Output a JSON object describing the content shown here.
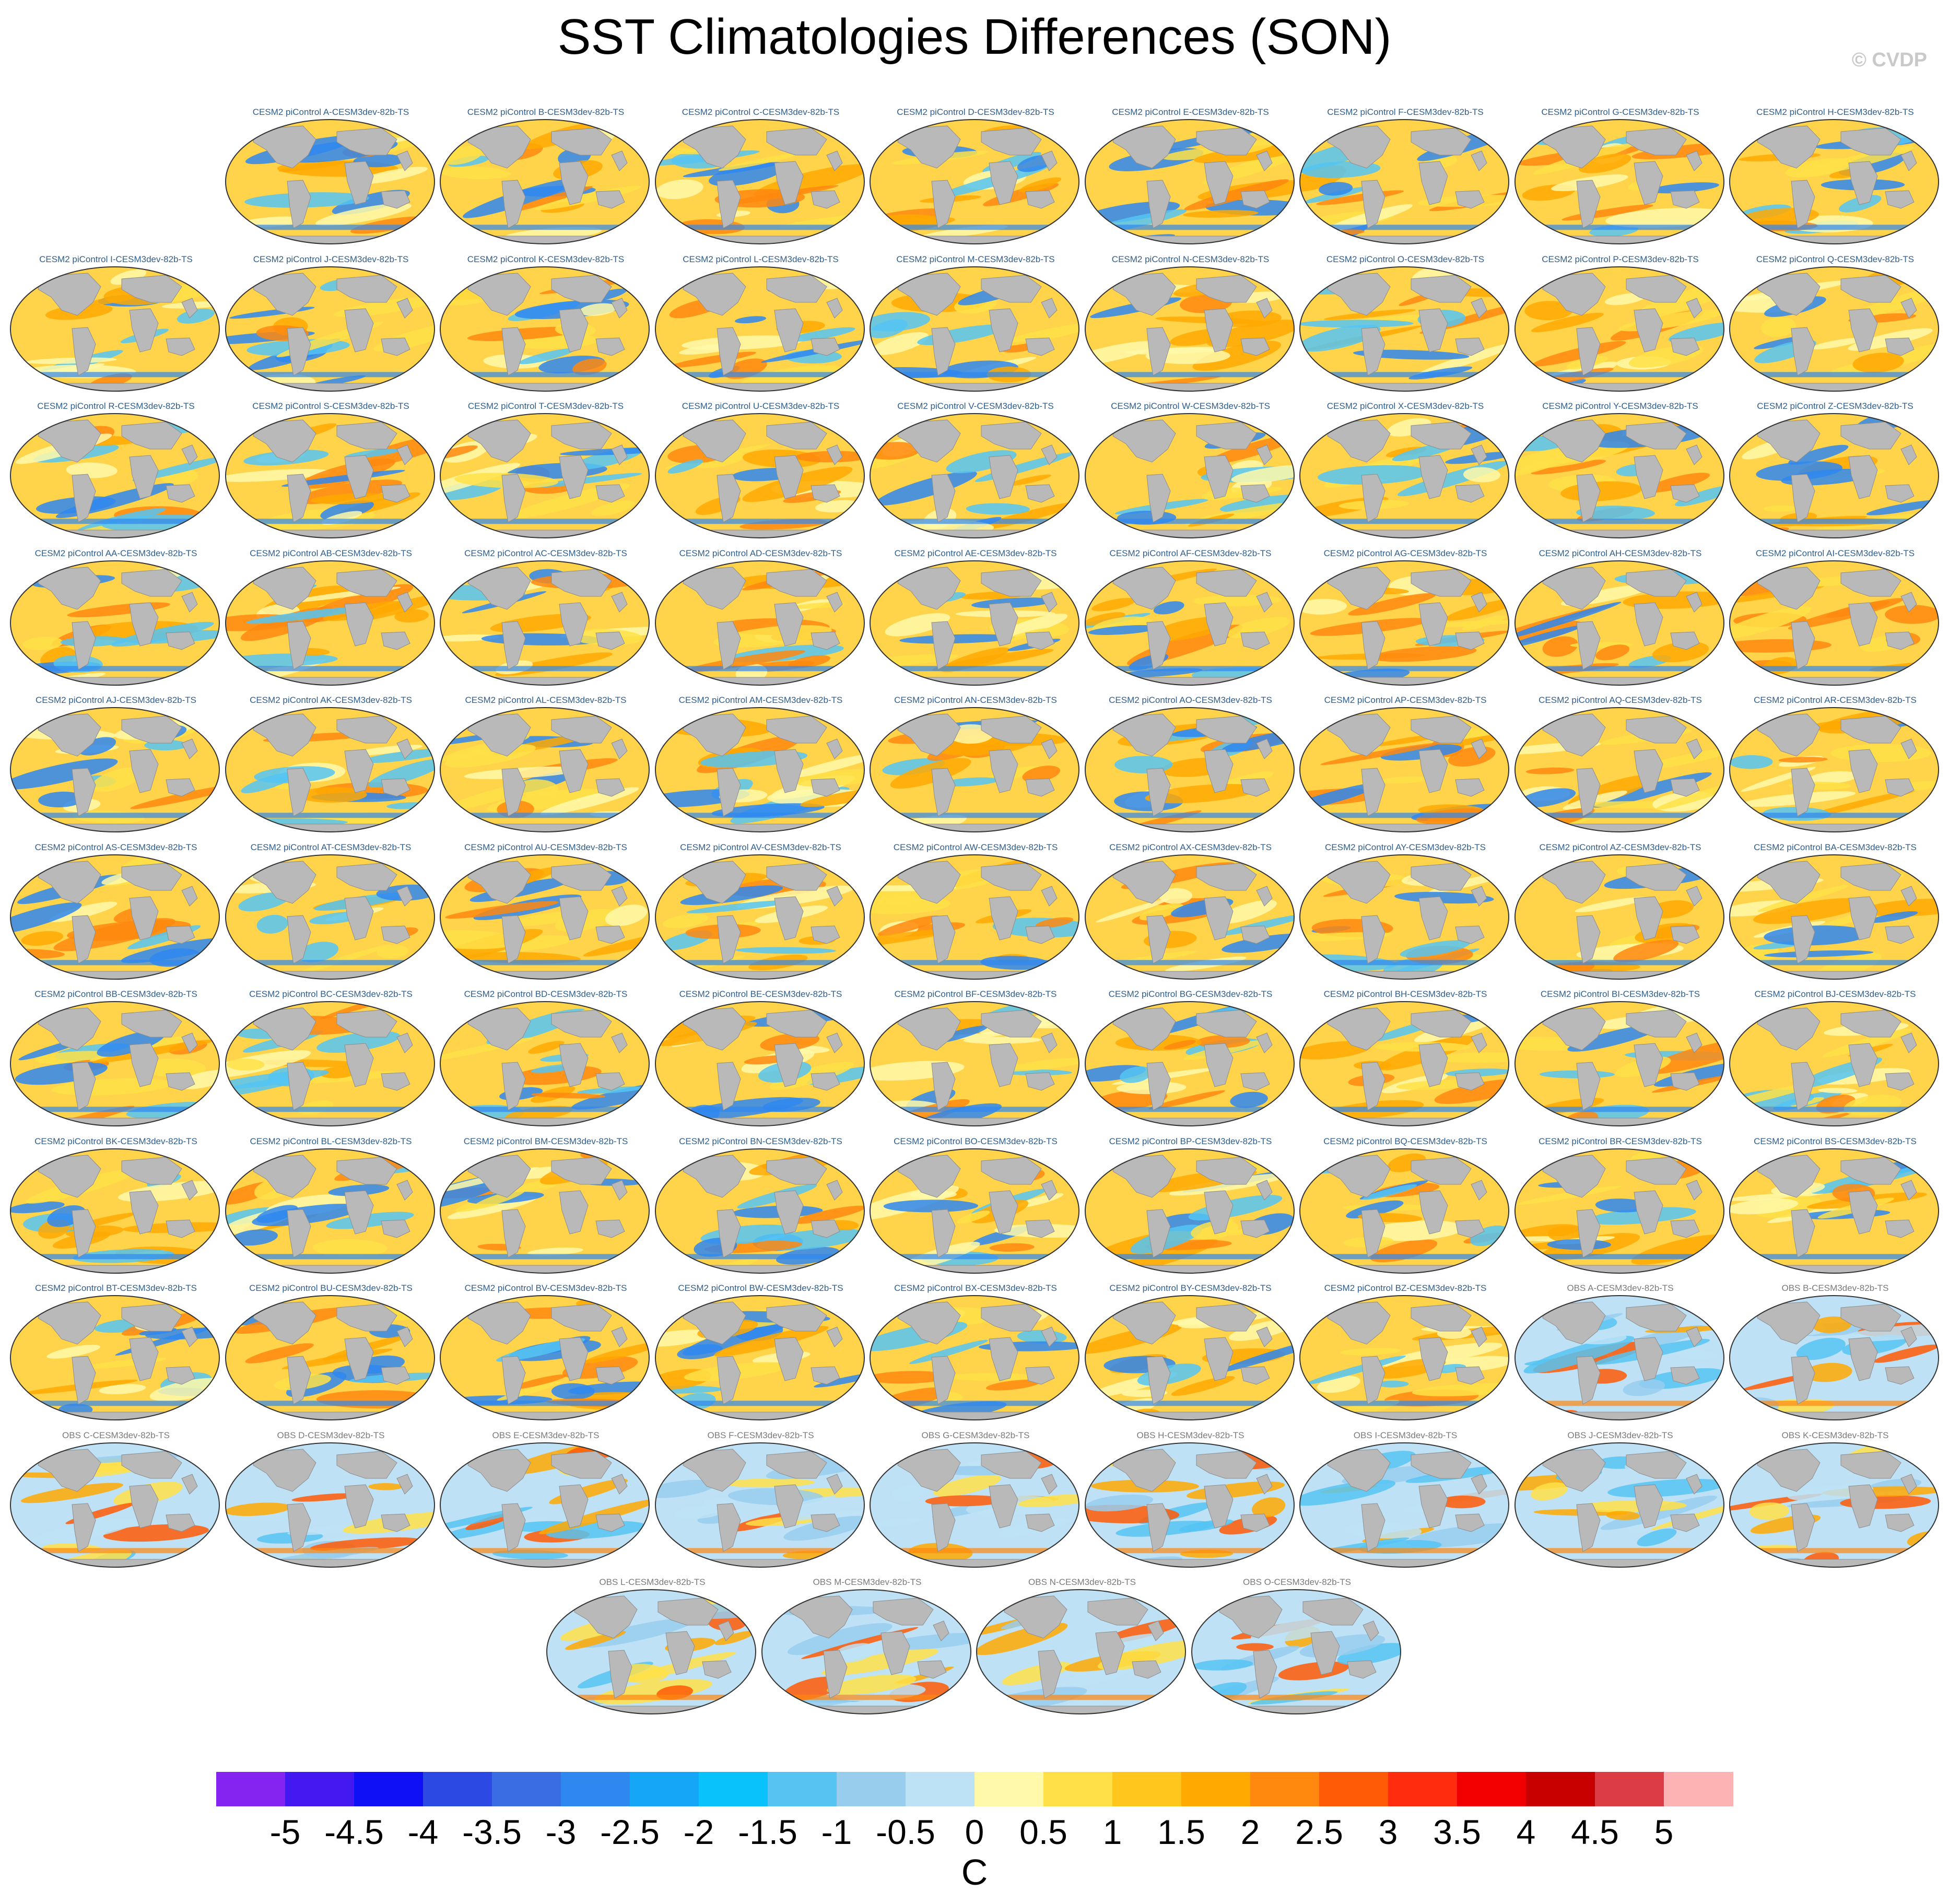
{
  "title": "SST Climatologies Differences (SON)",
  "copyright": "© CVDP",
  "units": "C",
  "colorbar": {
    "labels": [
      "-5",
      "-4.5",
      "-4",
      "-3.5",
      "-3",
      "-2.5",
      "-2",
      "-1.5",
      "-1",
      "-0.5",
      "0",
      "0.5",
      "1",
      "1.5",
      "2",
      "2.5",
      "3",
      "3.5",
      "4",
      "4.5",
      "5"
    ],
    "colors": [
      "#8424f0",
      "#4418f0",
      "#1010f6",
      "#2d49e3",
      "#3a6de3",
      "#2f87f0",
      "#16a6f8",
      "#0ac2fb",
      "#55c4f3",
      "#98cdee",
      "#bde2f6",
      "#fff9a9",
      "#ffe048",
      "#ffc61e",
      "#ffa901",
      "#ff880f",
      "#ff5a06",
      "#ff2c0e",
      "#f20000",
      "#c80000",
      "#dc3c44",
      "#fdb3b3"
    ]
  },
  "panels": [
    {
      "label": "CESM2 piControl A-CESM3dev-82b-TS",
      "kind": "model"
    },
    {
      "label": "CESM2 piControl B-CESM3dev-82b-TS",
      "kind": "model"
    },
    {
      "label": "CESM2 piControl C-CESM3dev-82b-TS",
      "kind": "model"
    },
    {
      "label": "CESM2 piControl D-CESM3dev-82b-TS",
      "kind": "model"
    },
    {
      "label": "CESM2 piControl E-CESM3dev-82b-TS",
      "kind": "model"
    },
    {
      "label": "CESM2 piControl F-CESM3dev-82b-TS",
      "kind": "model"
    },
    {
      "label": "CESM2 piControl G-CESM3dev-82b-TS",
      "kind": "model"
    },
    {
      "label": "CESM2 piControl H-CESM3dev-82b-TS",
      "kind": "model"
    },
    {
      "label": "CESM2 piControl I-CESM3dev-82b-TS",
      "kind": "model"
    },
    {
      "label": "CESM2 piControl J-CESM3dev-82b-TS",
      "kind": "model"
    },
    {
      "label": "CESM2 piControl K-CESM3dev-82b-TS",
      "kind": "model"
    },
    {
      "label": "CESM2 piControl L-CESM3dev-82b-TS",
      "kind": "model"
    },
    {
      "label": "CESM2 piControl M-CESM3dev-82b-TS",
      "kind": "model"
    },
    {
      "label": "CESM2 piControl N-CESM3dev-82b-TS",
      "kind": "model"
    },
    {
      "label": "CESM2 piControl O-CESM3dev-82b-TS",
      "kind": "model"
    },
    {
      "label": "CESM2 piControl P-CESM3dev-82b-TS",
      "kind": "model"
    },
    {
      "label": "CESM2 piControl Q-CESM3dev-82b-TS",
      "kind": "model"
    },
    {
      "label": "CESM2 piControl R-CESM3dev-82b-TS",
      "kind": "model"
    },
    {
      "label": "CESM2 piControl S-CESM3dev-82b-TS",
      "kind": "model"
    },
    {
      "label": "CESM2 piControl T-CESM3dev-82b-TS",
      "kind": "model"
    },
    {
      "label": "CESM2 piControl U-CESM3dev-82b-TS",
      "kind": "model"
    },
    {
      "label": "CESM2 piControl V-CESM3dev-82b-TS",
      "kind": "model"
    },
    {
      "label": "CESM2 piControl W-CESM3dev-82b-TS",
      "kind": "model"
    },
    {
      "label": "CESM2 piControl X-CESM3dev-82b-TS",
      "kind": "model"
    },
    {
      "label": "CESM2 piControl Y-CESM3dev-82b-TS",
      "kind": "model"
    },
    {
      "label": "CESM2 piControl Z-CESM3dev-82b-TS",
      "kind": "model"
    },
    {
      "label": "CESM2 piControl AA-CESM3dev-82b-TS",
      "kind": "model"
    },
    {
      "label": "CESM2 piControl AB-CESM3dev-82b-TS",
      "kind": "model"
    },
    {
      "label": "CESM2 piControl AC-CESM3dev-82b-TS",
      "kind": "model"
    },
    {
      "label": "CESM2 piControl AD-CESM3dev-82b-TS",
      "kind": "model"
    },
    {
      "label": "CESM2 piControl AE-CESM3dev-82b-TS",
      "kind": "model"
    },
    {
      "label": "CESM2 piControl AF-CESM3dev-82b-TS",
      "kind": "model"
    },
    {
      "label": "CESM2 piControl AG-CESM3dev-82b-TS",
      "kind": "model"
    },
    {
      "label": "CESM2 piControl AH-CESM3dev-82b-TS",
      "kind": "model"
    },
    {
      "label": "CESM2 piControl AI-CESM3dev-82b-TS",
      "kind": "model"
    },
    {
      "label": "CESM2 piControl AJ-CESM3dev-82b-TS",
      "kind": "model"
    },
    {
      "label": "CESM2 piControl AK-CESM3dev-82b-TS",
      "kind": "model"
    },
    {
      "label": "CESM2 piControl AL-CESM3dev-82b-TS",
      "kind": "model"
    },
    {
      "label": "CESM2 piControl AM-CESM3dev-82b-TS",
      "kind": "model"
    },
    {
      "label": "CESM2 piControl AN-CESM3dev-82b-TS",
      "kind": "model"
    },
    {
      "label": "CESM2 piControl AO-CESM3dev-82b-TS",
      "kind": "model"
    },
    {
      "label": "CESM2 piControl AP-CESM3dev-82b-TS",
      "kind": "model"
    },
    {
      "label": "CESM2 piControl AQ-CESM3dev-82b-TS",
      "kind": "model"
    },
    {
      "label": "CESM2 piControl AR-CESM3dev-82b-TS",
      "kind": "model"
    },
    {
      "label": "CESM2 piControl AS-CESM3dev-82b-TS",
      "kind": "model"
    },
    {
      "label": "CESM2 piControl AT-CESM3dev-82b-TS",
      "kind": "model"
    },
    {
      "label": "CESM2 piControl AU-CESM3dev-82b-TS",
      "kind": "model"
    },
    {
      "label": "CESM2 piControl AV-CESM3dev-82b-TS",
      "kind": "model"
    },
    {
      "label": "CESM2 piControl AW-CESM3dev-82b-TS",
      "kind": "model"
    },
    {
      "label": "CESM2 piControl AX-CESM3dev-82b-TS",
      "kind": "model"
    },
    {
      "label": "CESM2 piControl AY-CESM3dev-82b-TS",
      "kind": "model"
    },
    {
      "label": "CESM2 piControl AZ-CESM3dev-82b-TS",
      "kind": "model"
    },
    {
      "label": "CESM2 piControl BA-CESM3dev-82b-TS",
      "kind": "model"
    },
    {
      "label": "CESM2 piControl BB-CESM3dev-82b-TS",
      "kind": "model"
    },
    {
      "label": "CESM2 piControl BC-CESM3dev-82b-TS",
      "kind": "model"
    },
    {
      "label": "CESM2 piControl BD-CESM3dev-82b-TS",
      "kind": "model"
    },
    {
      "label": "CESM2 piControl BE-CESM3dev-82b-TS",
      "kind": "model"
    },
    {
      "label": "CESM2 piControl BF-CESM3dev-82b-TS",
      "kind": "model"
    },
    {
      "label": "CESM2 piControl BG-CESM3dev-82b-TS",
      "kind": "model"
    },
    {
      "label": "CESM2 piControl BH-CESM3dev-82b-TS",
      "kind": "model"
    },
    {
      "label": "CESM2 piControl BI-CESM3dev-82b-TS",
      "kind": "model"
    },
    {
      "label": "CESM2 piControl BJ-CESM3dev-82b-TS",
      "kind": "model"
    },
    {
      "label": "CESM2 piControl BK-CESM3dev-82b-TS",
      "kind": "model"
    },
    {
      "label": "CESM2 piControl BL-CESM3dev-82b-TS",
      "kind": "model"
    },
    {
      "label": "CESM2 piControl BM-CESM3dev-82b-TS",
      "kind": "model"
    },
    {
      "label": "CESM2 piControl BN-CESM3dev-82b-TS",
      "kind": "model"
    },
    {
      "label": "CESM2 piControl BO-CESM3dev-82b-TS",
      "kind": "model"
    },
    {
      "label": "CESM2 piControl BP-CESM3dev-82b-TS",
      "kind": "model"
    },
    {
      "label": "CESM2 piControl BQ-CESM3dev-82b-TS",
      "kind": "model"
    },
    {
      "label": "CESM2 piControl BR-CESM3dev-82b-TS",
      "kind": "model"
    },
    {
      "label": "CESM2 piControl BS-CESM3dev-82b-TS",
      "kind": "model"
    },
    {
      "label": "CESM2 piControl BT-CESM3dev-82b-TS",
      "kind": "model"
    },
    {
      "label": "CESM2 piControl BU-CESM3dev-82b-TS",
      "kind": "model"
    },
    {
      "label": "CESM2 piControl BV-CESM3dev-82b-TS",
      "kind": "model"
    },
    {
      "label": "CESM2 piControl BW-CESM3dev-82b-TS",
      "kind": "model"
    },
    {
      "label": "CESM2 piControl BX-CESM3dev-82b-TS",
      "kind": "model"
    },
    {
      "label": "CESM2 piControl BY-CESM3dev-82b-TS",
      "kind": "model"
    },
    {
      "label": "CESM2 piControl BZ-CESM3dev-82b-TS",
      "kind": "model"
    },
    {
      "label": "OBS A-CESM3dev-82b-TS",
      "kind": "obs"
    },
    {
      "label": "OBS B-CESM3dev-82b-TS",
      "kind": "obs"
    },
    {
      "label": "OBS C-CESM3dev-82b-TS",
      "kind": "obs"
    },
    {
      "label": "OBS D-CESM3dev-82b-TS",
      "kind": "obs"
    },
    {
      "label": "OBS E-CESM3dev-82b-TS",
      "kind": "obs"
    },
    {
      "label": "OBS F-CESM3dev-82b-TS",
      "kind": "obs"
    },
    {
      "label": "OBS G-CESM3dev-82b-TS",
      "kind": "obs"
    },
    {
      "label": "OBS H-CESM3dev-82b-TS",
      "kind": "obs"
    },
    {
      "label": "OBS I-CESM3dev-82b-TS",
      "kind": "obs"
    },
    {
      "label": "OBS J-CESM3dev-82b-TS",
      "kind": "obs"
    },
    {
      "label": "OBS K-CESM3dev-82b-TS",
      "kind": "obs"
    },
    {
      "label": "OBS L-CESM3dev-82b-TS",
      "kind": "obs"
    },
    {
      "label": "OBS M-CESM3dev-82b-TS",
      "kind": "obs"
    },
    {
      "label": "OBS N-CESM3dev-82b-TS",
      "kind": "obs"
    },
    {
      "label": "OBS O-CESM3dev-82b-TS",
      "kind": "obs"
    }
  ]
}
